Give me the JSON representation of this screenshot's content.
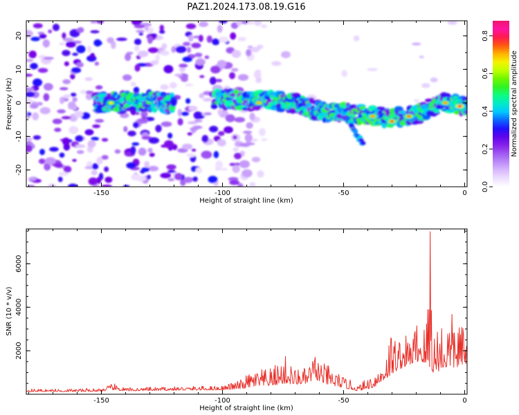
{
  "title": "PAZ1.2024.173.08.19.G16",
  "chart_data": [
    {
      "type": "heatmap",
      "xlabel": "Height of straight line (km)",
      "ylabel": "Frequency (Hz)",
      "xlim": [
        -181,
        1
      ],
      "ylim": [
        -25,
        24.5
      ],
      "xticks": [
        -150,
        -100,
        -50,
        0
      ],
      "xtick_labels": [
        "-150",
        "-100",
        "-50",
        "0"
      ],
      "yticks": [
        -20,
        -10,
        0,
        10,
        20
      ],
      "ytick_labels": [
        "-20",
        "-10",
        "0",
        "10",
        "20"
      ],
      "colorbar": {
        "label": "Normalized spectral amplitude",
        "range": [
          0.0,
          0.88
        ],
        "ticks": [
          0.0,
          0.2,
          0.4,
          0.6,
          0.8
        ],
        "tick_labels": [
          "0.0",
          "0.2",
          "0.4",
          "0.6",
          "0.8"
        ],
        "colormap": "gist_ncar_r"
      },
      "ridge": {
        "x": [
          -150,
          -140,
          -130,
          -120,
          -100,
          -90,
          -80,
          -70,
          -60,
          -50,
          -40,
          -30,
          -20,
          -10,
          0
        ],
        "freq": [
          0.0,
          0.5,
          0.5,
          0.0,
          1.5,
          0.5,
          1.0,
          0.0,
          -2.5,
          -3.0,
          -3.5,
          -4.5,
          -3.5,
          0.0,
          -1.0
        ]
      },
      "branch": {
        "x": [
          -50,
          -47,
          -44,
          -42
        ],
        "freq": [
          -4.0,
          -6.5,
          -9.5,
          -13.0
        ]
      },
      "hotspots": [
        {
          "x": -146,
          "freq": 0.0,
          "value": 0.65
        },
        {
          "x": -85,
          "freq": 0.0,
          "value": 0.7
        },
        {
          "x": -38,
          "freq": -4.0,
          "value": 0.72
        },
        {
          "x": -30,
          "freq": -5.5,
          "value": 0.75
        },
        {
          "x": -23,
          "freq": -4.0,
          "value": 0.74
        },
        {
          "x": -8,
          "freq": 0.0,
          "value": 0.72
        },
        {
          "x": -2,
          "freq": -1.0,
          "value": 0.8
        }
      ]
    },
    {
      "type": "line",
      "xlabel": "Height of straight line (km)",
      "ylabel": "SNR (10 * v/v)",
      "xlim": [
        -181,
        1
      ],
      "ylim": [
        0,
        7600
      ],
      "xticks": [
        -150,
        -100,
        -50,
        0
      ],
      "xtick_labels": [
        "-150",
        "-100",
        "-50",
        "0"
      ],
      "yticks": [
        2000,
        4000,
        6000
      ],
      "ytick_labels": [
        "2000",
        "4000",
        "6000"
      ],
      "color": "#e8302a",
      "envelope": {
        "x": [
          -181,
          -160,
          -150,
          -145,
          -140,
          -120,
          -100,
          -92,
          -88,
          -80,
          -74,
          -70,
          -65,
          -62,
          -58,
          -55,
          -50,
          -46,
          -44,
          -42,
          -38,
          -35,
          -33,
          -30,
          -28,
          -26,
          -24,
          -22,
          -20,
          -18,
          -16,
          -14.2,
          -13,
          -12,
          -10,
          -8,
          -6,
          -4,
          -2,
          0,
          1
        ],
        "base": [
          120,
          120,
          130,
          200,
          150,
          180,
          200,
          250,
          350,
          400,
          500,
          450,
          500,
          700,
          500,
          400,
          300,
          200,
          150,
          200,
          300,
          500,
          700,
          900,
          1100,
          1200,
          1300,
          1400,
          1500,
          1500,
          1300,
          1200,
          1000,
          1000,
          1100,
          1200,
          1300,
          1200,
          1300,
          1400,
          1400
        ],
        "peak": [
          250,
          250,
          300,
          500,
          300,
          350,
          400,
          700,
          1100,
          1200,
          1800,
          1200,
          1200,
          1900,
          1400,
          1300,
          800,
          600,
          400,
          600,
          1000,
          1300,
          1900,
          3200,
          2500,
          2900,
          2700,
          2600,
          3500,
          3600,
          3100,
          7600,
          3000,
          3300,
          3900,
          3200,
          3800,
          3700,
          3600,
          2800,
          2700
        ]
      }
    }
  ]
}
